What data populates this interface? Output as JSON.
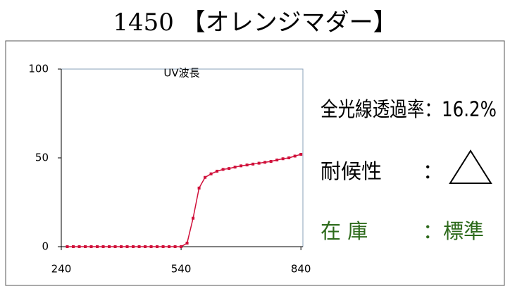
{
  "header": {
    "title": "1450 【オレンジマダー】"
  },
  "chart_data": {
    "type": "line",
    "title": "UV波長",
    "x": [
      255,
      270,
      285,
      300,
      315,
      330,
      345,
      360,
      375,
      390,
      405,
      420,
      435,
      450,
      465,
      480,
      495,
      510,
      525,
      540,
      555,
      570,
      585,
      600,
      615,
      630,
      645,
      660,
      675,
      690,
      705,
      720,
      735,
      750,
      765,
      780,
      795,
      810,
      825,
      840
    ],
    "series": [
      {
        "name": "UV波長",
        "color": "#d0103a",
        "values": [
          0,
          0,
          0,
          0,
          0,
          0,
          0,
          0,
          0,
          0,
          0,
          0,
          0,
          0,
          0,
          0,
          0,
          0,
          0,
          0,
          2,
          16,
          33,
          39,
          41,
          42.5,
          43.5,
          44,
          44.8,
          45.5,
          46,
          46.5,
          47,
          47.5,
          48,
          48.8,
          49.5,
          50,
          51,
          52
        ]
      }
    ],
    "xlim": [
      240,
      845
    ],
    "xticks": [
      240,
      540,
      840
    ],
    "ylim": [
      0,
      100
    ],
    "yticks": [
      0,
      50,
      100
    ],
    "grid": false
  },
  "info": {
    "transmittance": "全光線透過率：16.2%",
    "weather_label": "耐候性",
    "weather_colon": "：",
    "stock_label": "在 庫",
    "stock_value": "：標準"
  }
}
